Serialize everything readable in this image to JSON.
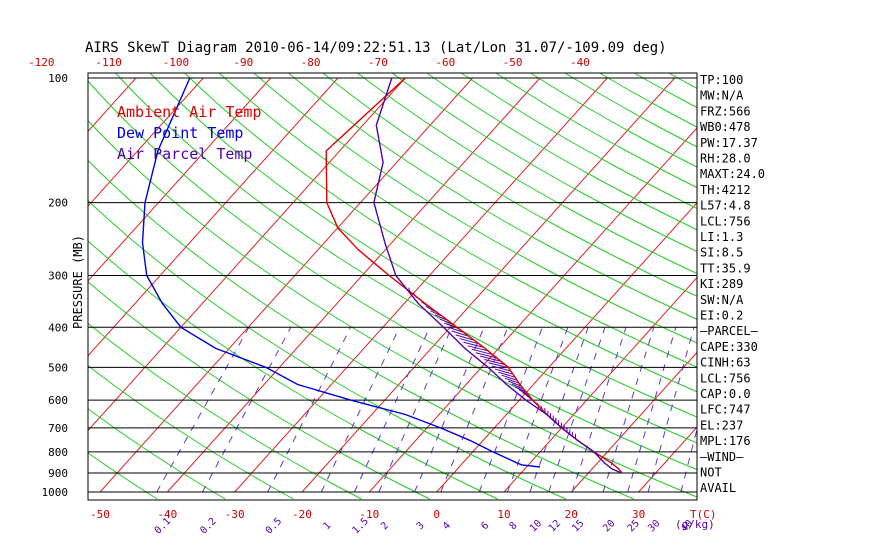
{
  "chart_data": {
    "type": "line",
    "title": "AIRS SkewT Diagram 2010-06-14/09:22:51.13 (Lat/Lon 31.07/-109.09 deg)",
    "ylabel": "PRESSURE (MB)",
    "xlabel_bottom_unit": "T(C)",
    "xlabel_mixing_unit": "(g/kg)",
    "y_scale": "log",
    "ylim": [
      1000,
      100
    ],
    "y_ticks": [
      100,
      200,
      300,
      400,
      500,
      600,
      700,
      800,
      900,
      1000
    ],
    "x_ticks_bottom": [
      -50,
      -40,
      -30,
      -20,
      -10,
      0,
      10,
      20,
      30
    ],
    "x_ticks_top": [
      -120,
      -110,
      -100,
      -90,
      -80,
      -70,
      -60,
      -50,
      -40
    ],
    "mixing_ratio_labels": [
      "0.1",
      "0.2",
      "0.5",
      "1",
      "1.5",
      "2",
      "3",
      "4",
      "6",
      "8",
      "10",
      "12",
      "15",
      "20",
      "25",
      "30",
      "40"
    ],
    "legend_position": "top-left",
    "series": [
      {
        "name": "Ambient Air Temp",
        "color": "#dd0000",
        "points": [
          [
            100,
            -60
          ],
          [
            150,
            -62
          ],
          [
            200,
            -55
          ],
          [
            230,
            -50
          ],
          [
            260,
            -44
          ],
          [
            300,
            -36
          ],
          [
            350,
            -27
          ],
          [
            400,
            -19
          ],
          [
            450,
            -12
          ],
          [
            500,
            -6
          ],
          [
            550,
            -2
          ],
          [
            600,
            2
          ],
          [
            650,
            6
          ],
          [
            700,
            10
          ],
          [
            750,
            14
          ],
          [
            800,
            18
          ],
          [
            850,
            22
          ],
          [
            880,
            24
          ],
          [
            900,
            25
          ]
        ]
      },
      {
        "name": "Dew Point Temp",
        "color": "#0000dd",
        "points": [
          [
            100,
            -92
          ],
          [
            150,
            -87
          ],
          [
            200,
            -82
          ],
          [
            250,
            -77
          ],
          [
            300,
            -72
          ],
          [
            350,
            -66
          ],
          [
            400,
            -60
          ],
          [
            450,
            -52
          ],
          [
            500,
            -42
          ],
          [
            550,
            -35
          ],
          [
            600,
            -25
          ],
          [
            650,
            -15
          ],
          [
            700,
            -8
          ],
          [
            750,
            -2
          ],
          [
            800,
            3
          ],
          [
            850,
            8
          ],
          [
            860,
            9
          ],
          [
            870,
            12
          ]
        ]
      },
      {
        "name": "Air Parcel Temp",
        "color": "#5500aa",
        "points": [
          [
            100,
            -62
          ],
          [
            130,
            -58
          ],
          [
            160,
            -52
          ],
          [
            200,
            -48
          ],
          [
            250,
            -41
          ],
          [
            300,
            -35
          ],
          [
            350,
            -28
          ],
          [
            400,
            -21
          ],
          [
            450,
            -15
          ],
          [
            500,
            -9
          ],
          [
            550,
            -4
          ],
          [
            600,
            1
          ],
          [
            650,
            6
          ],
          [
            700,
            10
          ],
          [
            750,
            14
          ],
          [
            800,
            18
          ],
          [
            850,
            21
          ],
          [
            880,
            23
          ],
          [
            900,
            25
          ]
        ]
      }
    ],
    "cape_hatch_range": [
      330,
      750
    ],
    "indices": [
      "TP:100",
      "MW:N/A",
      "FRZ:566",
      "WB0:478",
      "PW:17.37",
      "RH:28.0",
      "MAXT:24.0",
      "TH:4212",
      "L57:4.8",
      "LCL:756",
      "LI:1.3",
      "SI:8.5",
      "TT:35.9",
      "KI:289",
      "SW:N/A",
      "EI:0.2",
      "—PARCEL—",
      "CAPE:330",
      "CINH:63",
      "LCL:756",
      "CAP:0.0",
      "LFC:747",
      "EL:237",
      "MPL:176",
      "—WIND—",
      "NOT",
      "AVAIL"
    ]
  }
}
